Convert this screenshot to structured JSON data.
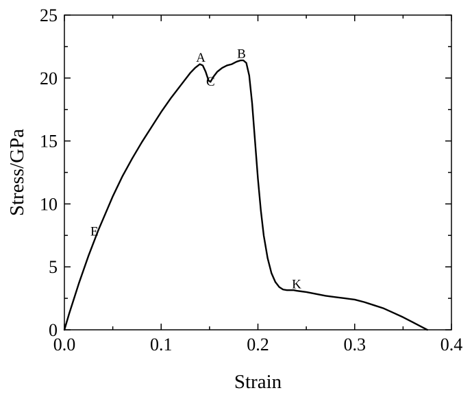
{
  "chart_data": {
    "type": "line",
    "xlabel": "Strain",
    "ylabel": "Stress/GPa",
    "xlim": [
      0.0,
      0.4
    ],
    "ylim": [
      0,
      25
    ],
    "xticks": [
      0.0,
      0.1,
      0.2,
      0.3,
      0.4
    ],
    "xtick_labels": [
      "0.0",
      "0.1",
      "0.2",
      "0.3",
      "0.4"
    ],
    "yticks": [
      0,
      5,
      10,
      15,
      20,
      25
    ],
    "ytick_labels": [
      "0",
      "5",
      "10",
      "15",
      "20",
      "25"
    ],
    "x_minor_step": 0.05,
    "y_minor_step": 2.5,
    "grid": false,
    "legend": "none",
    "line_color": "#000000",
    "series": [
      {
        "x": [
          0.0,
          0.005,
          0.01,
          0.015,
          0.02,
          0.025,
          0.03,
          0.035,
          0.04,
          0.045,
          0.05,
          0.055,
          0.06,
          0.065,
          0.07,
          0.08,
          0.09,
          0.1,
          0.11,
          0.12,
          0.13,
          0.135,
          0.14,
          0.143,
          0.146,
          0.149,
          0.151,
          0.154,
          0.158,
          0.163,
          0.168,
          0.173,
          0.178,
          0.182,
          0.185,
          0.188,
          0.191,
          0.194,
          0.197,
          0.2,
          0.203,
          0.206,
          0.21,
          0.214,
          0.218,
          0.222,
          0.226,
          0.23,
          0.234,
          0.237,
          0.24,
          0.245,
          0.25,
          0.26,
          0.27,
          0.28,
          0.29,
          0.3,
          0.31,
          0.32,
          0.33,
          0.34,
          0.35,
          0.36,
          0.37,
          0.375
        ],
        "y": [
          0.0,
          1.3,
          2.5,
          3.7,
          4.8,
          5.9,
          6.9,
          7.9,
          8.8,
          9.7,
          10.6,
          11.4,
          12.2,
          12.9,
          13.6,
          14.9,
          16.1,
          17.3,
          18.4,
          19.4,
          20.4,
          20.8,
          21.1,
          21.0,
          20.5,
          19.8,
          19.7,
          20.1,
          20.5,
          20.8,
          21.0,
          21.1,
          21.3,
          21.4,
          21.4,
          21.2,
          20.2,
          18.0,
          15.0,
          12.0,
          9.5,
          7.5,
          5.7,
          4.5,
          3.8,
          3.4,
          3.2,
          3.15,
          3.15,
          3.15,
          3.1,
          3.05,
          3.0,
          2.85,
          2.7,
          2.6,
          2.5,
          2.4,
          2.2,
          1.95,
          1.7,
          1.35,
          1.0,
          0.6,
          0.2,
          0.0
        ]
      }
    ],
    "annotations": [
      {
        "label": "A",
        "x": 0.141,
        "y": 21.3
      },
      {
        "label": "B",
        "x": 0.183,
        "y": 21.6
      },
      {
        "label": "C",
        "x": 0.151,
        "y": 19.4
      },
      {
        "label": "E",
        "x": 0.031,
        "y": 7.5
      },
      {
        "label": "K",
        "x": 0.24,
        "y": 3.3
      }
    ]
  }
}
